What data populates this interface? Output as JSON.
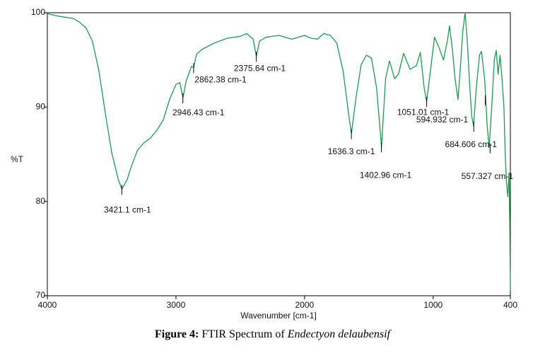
{
  "chart_data": {
    "type": "line",
    "xlabel": "Wavenumber [cm-1]",
    "ylabel": "%T",
    "color": "#1e9a4e",
    "xlim": [
      4000,
      400
    ],
    "xticks": [
      4000,
      3000,
      2000,
      1000,
      400
    ],
    "ylim": [
      70,
      100
    ],
    "yticks": [
      70,
      80,
      90,
      100
    ],
    "grid": false,
    "x": [
      4000,
      3900,
      3800,
      3750,
      3700,
      3650,
      3600,
      3550,
      3500,
      3450,
      3421,
      3380,
      3350,
      3300,
      3250,
      3200,
      3150,
      3100,
      3050,
      3000,
      2970,
      2946,
      2920,
      2880,
      2862,
      2840,
      2800,
      2700,
      2600,
      2500,
      2450,
      2400,
      2375,
      2350,
      2300,
      2200,
      2100,
      2000,
      1950,
      1900,
      1850,
      1800,
      1750,
      1700,
      1660,
      1636,
      1600,
      1560,
      1520,
      1480,
      1440,
      1402,
      1370,
      1340,
      1300,
      1270,
      1230,
      1180,
      1130,
      1100,
      1070,
      1051,
      1020,
      990,
      960,
      920,
      890,
      873,
      850,
      830,
      807,
      790,
      770,
      752,
      735,
      715,
      700,
      686,
      665,
      640,
      625,
      600,
      580,
      565,
      545,
      525,
      510,
      495,
      480,
      465,
      450,
      440,
      430,
      420,
      410,
      405,
      400
    ],
    "values": [
      99.9,
      99.6,
      99.4,
      99.0,
      98.4,
      97.0,
      93.9,
      89.4,
      85.2,
      82.4,
      81.3,
      82.3,
      83.6,
      85.4,
      86.2,
      86.7,
      87.5,
      88.6,
      90.8,
      92.4,
      92.6,
      91.0,
      92.8,
      94.3,
      94.2,
      95.6,
      96.1,
      96.8,
      97.3,
      97.5,
      97.8,
      97.2,
      95.4,
      97.0,
      97.4,
      97.6,
      97.2,
      97.6,
      97.3,
      97.2,
      97.8,
      97.6,
      96.8,
      93.8,
      89.5,
      87.2,
      91.0,
      94.5,
      95.5,
      95.2,
      92.0,
      85.8,
      93.0,
      94.9,
      93.0,
      93.5,
      95.7,
      94.0,
      94.4,
      95.8,
      92.0,
      90.6,
      94.0,
      97.4,
      96.5,
      95.0,
      97.0,
      98.6,
      96.0,
      93.0,
      90.8,
      94.0,
      98.0,
      100.0,
      97.0,
      92.0,
      89.0,
      88.0,
      92.0,
      95.5,
      95.9,
      93.0,
      88.0,
      85.7,
      90.0,
      95.0,
      96.0,
      93.5,
      95.5,
      93.0,
      90.0,
      85.0,
      82.0,
      80.5,
      83.0,
      78.0,
      70.5
    ],
    "annotations": [
      {
        "x": 3421.1,
        "y": 81.3,
        "label": "3421.1 cm-1"
      },
      {
        "x": 2946.43,
        "y": 91.0,
        "label": "2946.43 cm-1"
      },
      {
        "x": 2862.38,
        "y": 94.2,
        "label": "2862.38 cm-1"
      },
      {
        "x": 2375.64,
        "y": 95.4,
        "label": "2375.64 cm-1"
      },
      {
        "x": 1636.3,
        "y": 87.2,
        "label": "1636.3 cm-1"
      },
      {
        "x": 1402.96,
        "y": 85.8,
        "label": "1402.96 cm-1"
      },
      {
        "x": 1051.01,
        "y": 90.6,
        "label": "1051.01 cm-1"
      },
      {
        "x": 594.932,
        "y": 90.8,
        "label": "594.932 cm-1"
      },
      {
        "x": 684.606,
        "y": 88.0,
        "label": "684.606 cm-1"
      },
      {
        "x": 557.327,
        "y": 85.7,
        "label": "557.327 cm-1"
      }
    ]
  },
  "caption": {
    "bold": "Figure 4:",
    "text": "FTIR Spectrum of",
    "italic": "Endectyon delaubensif"
  }
}
